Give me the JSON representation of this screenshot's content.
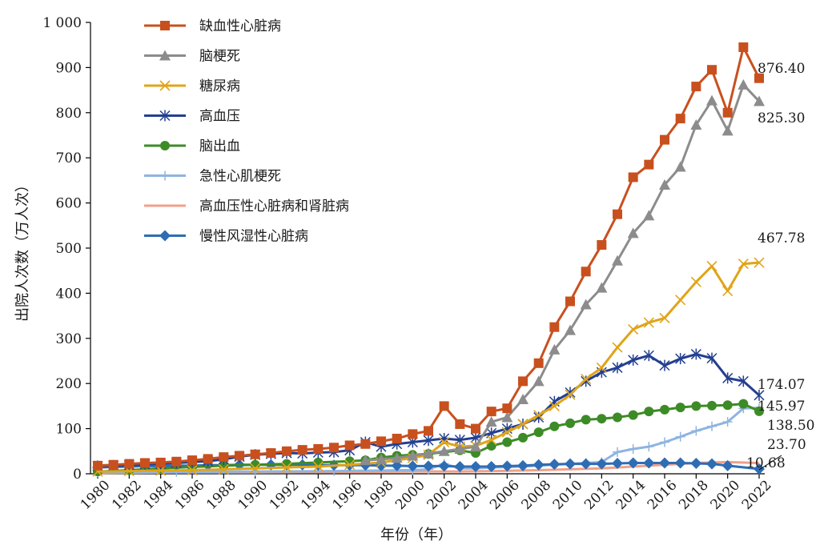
{
  "chart_data": {
    "type": "line",
    "title": "",
    "xlabel": "年份（年）",
    "ylabel": "出院人次数（万人次）",
    "xlim": [
      1980,
      2022
    ],
    "ylim": [
      0,
      1000
    ],
    "x_tick_labels": [
      "1980",
      "1982",
      "1984",
      "1986",
      "1988",
      "1990",
      "1992",
      "1994",
      "1996",
      "1998",
      "2000",
      "2002",
      "2004",
      "2006",
      "2008",
      "2010",
      "2012",
      "2014",
      "2016",
      "2018",
      "2020",
      "2022"
    ],
    "y_tick_labels": [
      "0",
      "100",
      "200",
      "300",
      "400",
      "500",
      "600",
      "700",
      "800",
      "900",
      "1 000"
    ],
    "grid": false,
    "legend_position": "top-left",
    "end_labels": [
      "876.40",
      "825.30",
      "467.78",
      "174.07",
      "145.97",
      "138.50",
      "23.70",
      "10.68"
    ],
    "series": [
      {
        "name": "缺血性心脏病",
        "color": "#c8501e",
        "marker": "square",
        "x": [
          1980,
          1981,
          1982,
          1983,
          1984,
          1985,
          1986,
          1987,
          1988,
          1989,
          1990,
          1991,
          1992,
          1993,
          1994,
          1995,
          1996,
          1997,
          1998,
          1999,
          2000,
          2001,
          2002,
          2003,
          2004,
          2005,
          2006,
          2007,
          2008,
          2009,
          2010,
          2011,
          2012,
          2013,
          2014,
          2015,
          2016,
          2017,
          2018,
          2019,
          2020,
          2021,
          2022
        ],
        "values": [
          18,
          20,
          22,
          24,
          25,
          27,
          30,
          33,
          37,
          40,
          43,
          46,
          50,
          53,
          55,
          58,
          63,
          66,
          72,
          78,
          88,
          95,
          150,
          110,
          100,
          138,
          145,
          205,
          245,
          325,
          382,
          448,
          507,
          575,
          657,
          685,
          740,
          787,
          858,
          895,
          800,
          945,
          876.4
        ]
      },
      {
        "name": "脑梗死",
        "color": "#8c8c8c",
        "marker": "triangle",
        "x": [
          1997,
          1998,
          1999,
          2000,
          2001,
          2002,
          2003,
          2004,
          2005,
          2006,
          2007,
          2008,
          2009,
          2010,
          2011,
          2012,
          2013,
          2014,
          2015,
          2016,
          2017,
          2018,
          2019,
          2020,
          2021,
          2022
        ],
        "values": [
          30,
          32,
          35,
          40,
          45,
          50,
          55,
          60,
          115,
          125,
          165,
          205,
          275,
          318,
          375,
          412,
          472,
          533,
          572,
          640,
          680,
          773,
          827,
          760,
          862,
          825.3
        ]
      },
      {
        "name": "糖尿病",
        "color": "#e0a41a",
        "marker": "x",
        "x": [
          1980,
          1982,
          1984,
          1986,
          1988,
          1990,
          1992,
          1994,
          1996,
          1998,
          2000,
          2001,
          2002,
          2003,
          2004,
          2005,
          2006,
          2007,
          2008,
          2009,
          2010,
          2011,
          2012,
          2013,
          2014,
          2015,
          2016,
          2017,
          2018,
          2019,
          2020,
          2021,
          2022
        ],
        "values": [
          5,
          6,
          7,
          8,
          10,
          12,
          14,
          16,
          20,
          25,
          35,
          42,
          70,
          60,
          62,
          75,
          92,
          110,
          130,
          150,
          175,
          210,
          235,
          280,
          320,
          335,
          345,
          385,
          425,
          460,
          405,
          465,
          467.78
        ]
      },
      {
        "name": "高血压",
        "color": "#233f90",
        "marker": "asterisk",
        "x": [
          1980,
          1981,
          1982,
          1983,
          1984,
          1985,
          1986,
          1987,
          1988,
          1989,
          1990,
          1991,
          1992,
          1993,
          1994,
          1995,
          1996,
          1997,
          1998,
          1999,
          2000,
          2001,
          2002,
          2003,
          2004,
          2005,
          2006,
          2007,
          2008,
          2009,
          2010,
          2011,
          2012,
          2013,
          2014,
          2015,
          2016,
          2017,
          2018,
          2019,
          2020,
          2021,
          2022
        ],
        "values": [
          17,
          18,
          19,
          21,
          22,
          24,
          26,
          28,
          32,
          38,
          42,
          44,
          46,
          45,
          47,
          48,
          52,
          70,
          60,
          66,
          70,
          74,
          78,
          75,
          80,
          90,
          100,
          110,
          125,
          160,
          180,
          205,
          225,
          235,
          252,
          262,
          240,
          255,
          265,
          256,
          212,
          205,
          174.07
        ]
      },
      {
        "name": "脑出血",
        "color": "#3d8b27",
        "marker": "circle",
        "x": [
          1980,
          1982,
          1984,
          1986,
          1988,
          1990,
          1992,
          1994,
          1996,
          1997,
          1998,
          1999,
          2000,
          2001,
          2003,
          2004,
          2005,
          2006,
          2007,
          2008,
          2009,
          2010,
          2011,
          2012,
          2013,
          2014,
          2015,
          2016,
          2017,
          2018,
          2019,
          2020,
          2021,
          2022
        ],
        "values": [
          5,
          8,
          12,
          15,
          18,
          20,
          22,
          25,
          28,
          30,
          36,
          40,
          42,
          44,
          52,
          46,
          62,
          70,
          80,
          92,
          105,
          112,
          120,
          122,
          125,
          130,
          138,
          142,
          147,
          150,
          151,
          152,
          155,
          138.5
        ]
      },
      {
        "name": "急性心肌梗死",
        "color": "#8fb4e0",
        "marker": "plus",
        "x": [
          1980,
          1985,
          1990,
          1995,
          2000,
          2001,
          2002,
          2003,
          2004,
          2005,
          2006,
          2007,
          2008,
          2009,
          2010,
          2011,
          2012,
          2013,
          2014,
          2015,
          2016,
          2017,
          2018,
          2019,
          2020,
          2021,
          2022
        ],
        "values": [
          3,
          4,
          5,
          6,
          8,
          10,
          22,
          12,
          12,
          14,
          15,
          16,
          18,
          20,
          22,
          24,
          26,
          48,
          55,
          60,
          70,
          82,
          95,
          105,
          115,
          145,
          145.97
        ]
      },
      {
        "name": "高血压性心脏病和肾脏病",
        "color": "#f0a08a",
        "marker": "none",
        "x": [
          1980,
          1985,
          1990,
          1995,
          2000,
          2003,
          2005,
          2008,
          2010,
          2012,
          2014,
          2016,
          2018,
          2020,
          2022
        ],
        "values": [
          2,
          3,
          3,
          4,
          5,
          5,
          6,
          8,
          10,
          12,
          16,
          20,
          24,
          26,
          23.7
        ]
      },
      {
        "name": "慢性风湿性心脏病",
        "color": "#2e6db4",
        "marker": "diamond",
        "x": [
          1980,
          1981,
          1982,
          1983,
          1984,
          1985,
          1986,
          1987,
          1988,
          1989,
          1990,
          1991,
          1992,
          1993,
          1994,
          1995,
          1996,
          1997,
          1998,
          1999,
          2000,
          2001,
          2002,
          2003,
          2004,
          2005,
          2006,
          2007,
          2008,
          2009,
          2010,
          2011,
          2012,
          2013,
          2014,
          2015,
          2016,
          2017,
          2018,
          2019,
          2020,
          2022
        ],
        "values": [
          14,
          15,
          16,
          17,
          17,
          18,
          18,
          19,
          19,
          20,
          20,
          20,
          20,
          20,
          19,
          19,
          19,
          19,
          18,
          18,
          17,
          17,
          17,
          16,
          16,
          16,
          17,
          18,
          20,
          21,
          22,
          22,
          22,
          23,
          24,
          24,
          24,
          24,
          23,
          22,
          18,
          10.68
        ]
      }
    ]
  }
}
